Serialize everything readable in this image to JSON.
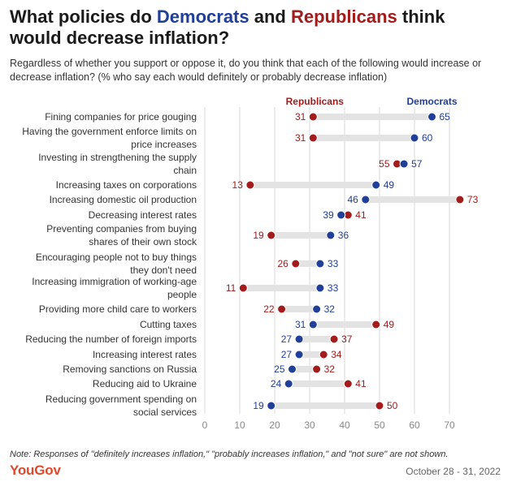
{
  "title": {
    "part1": "What policies do ",
    "democrats": "Democrats",
    "part2": " and ",
    "republicans": "Republicans",
    "part3": " think",
    "line2": "would decrease inflation?"
  },
  "subtitle": "Regardless of whether you support or oppose it, do you think that each of the following would increase or decrease inflation? (% who say each would definitely or probably decrease inflation)",
  "note": "Note: Responses of \"definitely increases inflation,\" \"probably increases inflation,\" and \"not sure\" are not shown.",
  "brand": "YouGov",
  "date": "October 28 - 31, 2022",
  "colors": {
    "democrats": "#1f3f99",
    "republicans": "#a31b1b",
    "bar": "#e3e3e3",
    "grid": "#d9d9d9"
  },
  "chart_data": {
    "type": "dot",
    "title": "What policies do Democrats and Republicans think would decrease inflation?",
    "xlim": [
      0,
      75
    ],
    "xticks": [
      "0",
      "10",
      "20",
      "30",
      "40",
      "50",
      "60",
      "70"
    ],
    "legend": {
      "republicans": "Republicans",
      "democrats": "Democrats"
    },
    "categories": [
      [
        "Fining companies for price gouging"
      ],
      [
        "Having the government enforce limits on",
        "price increases"
      ],
      [
        "Investing in strengthening the supply",
        "chain"
      ],
      [
        "Increasing taxes on corporations"
      ],
      [
        "Increasing domestic oil production"
      ],
      [
        "Decreasing interest rates"
      ],
      [
        "Preventing companies from buying",
        "shares of their own stock"
      ],
      [
        "Encouraging people not to buy things",
        "they don't need"
      ],
      [
        "Increasing immigration of working-age",
        "people"
      ],
      [
        "Providing more child care to workers"
      ],
      [
        "Cutting taxes"
      ],
      [
        "Reducing the number of foreign imports"
      ],
      [
        "Increasing interest rates"
      ],
      [
        "Removing sanctions on Russia"
      ],
      [
        "Reducing aid to Ukraine"
      ],
      [
        "Reducing government spending on",
        "social services"
      ]
    ],
    "series": [
      {
        "name": "Republicans",
        "values": [
          31,
          31,
          55,
          13,
          73,
          41,
          19,
          26,
          11,
          22,
          49,
          37,
          34,
          32,
          41,
          50
        ]
      },
      {
        "name": "Democrats",
        "values": [
          65,
          60,
          57,
          49,
          46,
          39,
          36,
          33,
          33,
          32,
          31,
          27,
          27,
          25,
          24,
          19
        ]
      }
    ]
  }
}
